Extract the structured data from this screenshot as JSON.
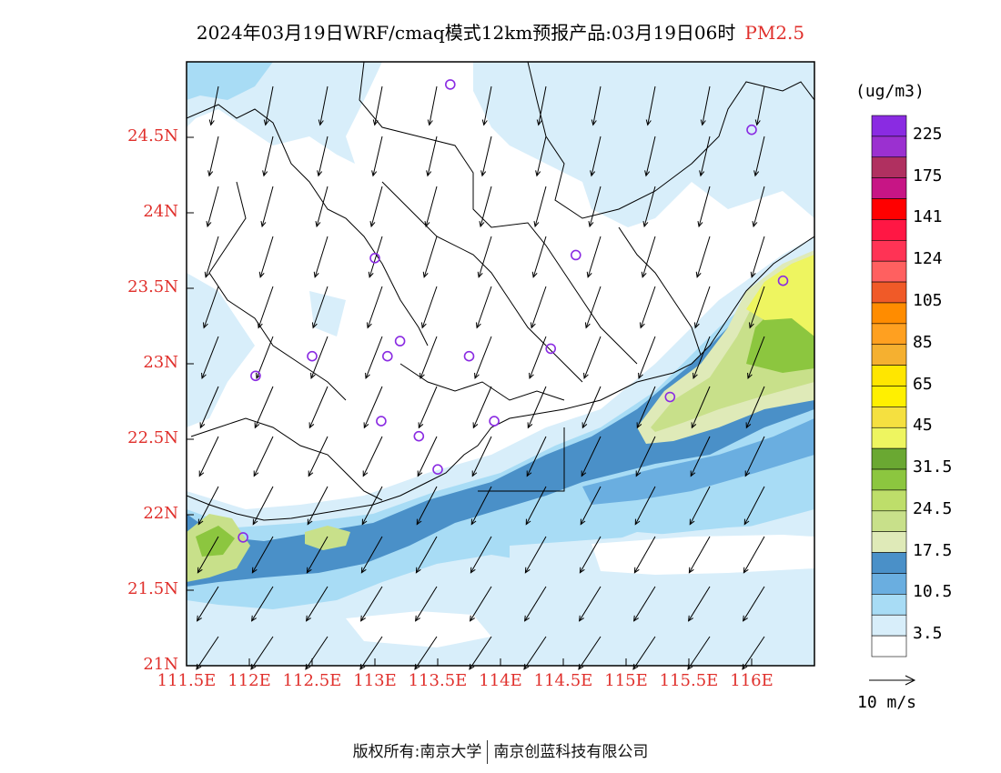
{
  "title": {
    "main": "2024年03月19日WRF/cmaq模式12km预报产品:03月19日06时",
    "parameter": "PM2.5"
  },
  "unit": "(ug/m3)",
  "colors": {
    "axis_label": "#e0302c",
    "coastline": "#000000",
    "station_marker": "#8a2be2"
  },
  "axes": {
    "lat_labels": [
      "24.5N",
      "24N",
      "23.5N",
      "23N",
      "22.5N",
      "22N",
      "21.5N",
      "21N"
    ],
    "lon_labels": [
      "111.5E",
      "112E",
      "112.5E",
      "113E",
      "113.5E",
      "114E",
      "114.5E",
      "115E",
      "115.5E",
      "116E"
    ],
    "lat_range": [
      21,
      25
    ],
    "lon_range": [
      111.5,
      116.5
    ]
  },
  "legend": {
    "labels": [
      "225",
      "175",
      "141",
      "124",
      "105",
      "85",
      "65",
      "45",
      "31.5",
      "24.5",
      "17.5",
      "10.5",
      "3.5"
    ],
    "colors": [
      "#8a2be2",
      "#9b30d0",
      "#b03060",
      "#c71585",
      "#ff0000",
      "#ff1744",
      "#ff3355",
      "#ff6060",
      "#f05a28",
      "#ff8c00",
      "#ffa020",
      "#f5b030",
      "#ffe600",
      "#fff000",
      "#f5e040",
      "#eef560",
      "#6aa832",
      "#8cc63f",
      "#bede6a",
      "#c8e08a",
      "#dfeab8",
      "#4a90c8",
      "#6aaee0",
      "#a8dcf5",
      "#d8eefa",
      "#ffffff"
    ]
  },
  "wind_vector": {
    "label": "10 m/s"
  },
  "stations": [
    {
      "lon": 113.6,
      "lat": 24.85
    },
    {
      "lon": 116.0,
      "lat": 24.55
    },
    {
      "lon": 113.0,
      "lat": 23.7
    },
    {
      "lon": 114.6,
      "lat": 23.72
    },
    {
      "lon": 116.25,
      "lat": 23.55
    },
    {
      "lon": 113.2,
      "lat": 23.15
    },
    {
      "lon": 113.1,
      "lat": 23.05
    },
    {
      "lon": 112.5,
      "lat": 23.05
    },
    {
      "lon": 112.05,
      "lat": 22.92
    },
    {
      "lon": 113.75,
      "lat": 23.05
    },
    {
      "lon": 114.4,
      "lat": 23.1
    },
    {
      "lon": 115.35,
      "lat": 22.78
    },
    {
      "lon": 113.05,
      "lat": 22.62
    },
    {
      "lon": 113.35,
      "lat": 22.52
    },
    {
      "lon": 113.95,
      "lat": 22.62
    },
    {
      "lon": 113.5,
      "lat": 22.3
    },
    {
      "lon": 111.95,
      "lat": 21.85
    }
  ],
  "footer": {
    "left": "版权所有:南京大学",
    "right": "南京创蓝科技有限公司"
  }
}
